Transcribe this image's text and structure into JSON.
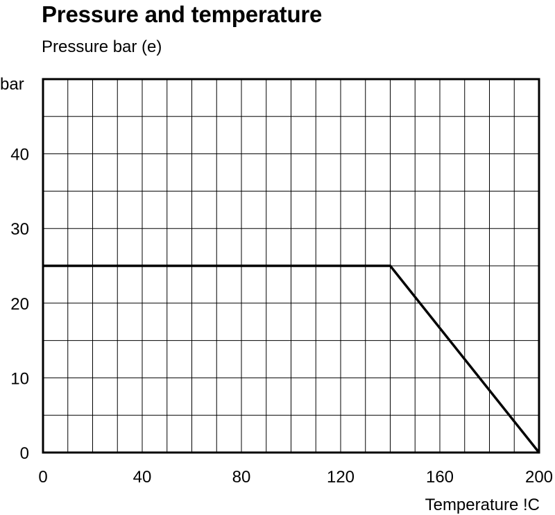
{
  "chart_data": {
    "type": "line",
    "title": "Pressure and temperature",
    "subtitle": "Pressure bar (e)",
    "ylabel": "bar",
    "xlabel": "Temperature !C",
    "xlim": [
      0,
      200
    ],
    "ylim": [
      0,
      50
    ],
    "x_ticks": [
      0,
      40,
      80,
      120,
      160,
      200
    ],
    "y_ticks": [
      0,
      10,
      20,
      30,
      40
    ],
    "grid": true,
    "grid_x_step": 10,
    "grid_y_step": 5,
    "series": [
      {
        "x": [
          0,
          140,
          200
        ],
        "y": [
          25,
          25,
          0
        ]
      }
    ]
  }
}
